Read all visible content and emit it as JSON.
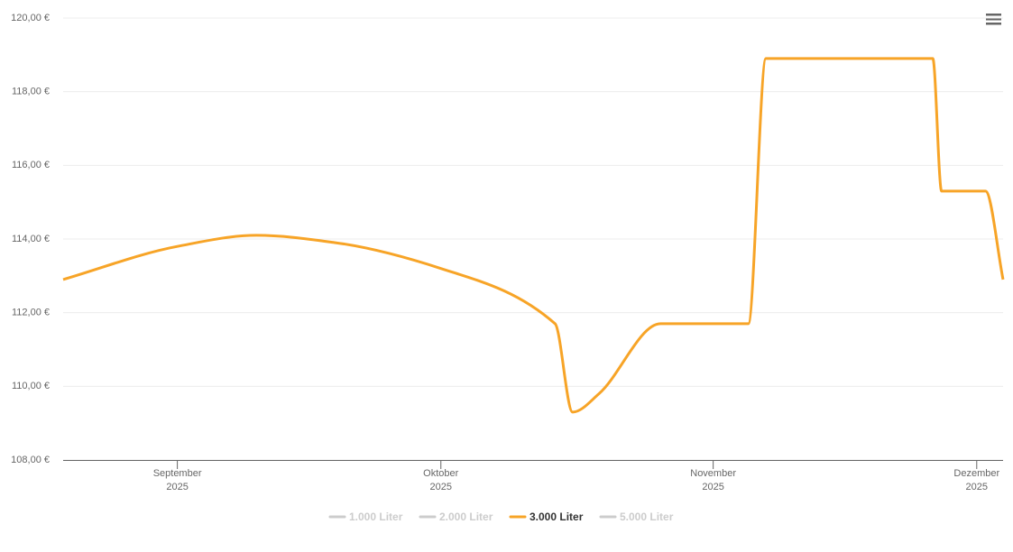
{
  "chart_data": {
    "type": "line",
    "x": [
      231,
      244,
      253,
      262,
      274,
      287,
      289,
      292,
      299,
      309,
      311,
      330,
      331,
      336,
      338
    ],
    "xlim": [
      231,
      338
    ],
    "xticks": [
      {
        "value": 244,
        "label": "September\n2025"
      },
      {
        "value": 274,
        "label": "Oktober\n2025"
      },
      {
        "value": 305,
        "label": "November\n2025"
      },
      {
        "value": 335,
        "label": "Dezember\n2025"
      }
    ],
    "ylim": [
      108,
      120
    ],
    "yticks": [
      {
        "value": 108,
        "label": "108,00 €"
      },
      {
        "value": 110,
        "label": "110,00 €"
      },
      {
        "value": 112,
        "label": "112,00 €"
      },
      {
        "value": 114,
        "label": "114,00 €"
      },
      {
        "value": 116,
        "label": "116,00 €"
      },
      {
        "value": 118,
        "label": "118,00 €"
      },
      {
        "value": 120,
        "label": "120,00 €"
      }
    ],
    "grid": true,
    "series": [
      {
        "name": "1.000 Liter",
        "color": "#cccccc",
        "visible": false
      },
      {
        "name": "2.000 Liter",
        "color": "#cccccc",
        "visible": false
      },
      {
        "name": "3.000 Liter",
        "color": "#f7a427",
        "visible": true,
        "values": [
          112.9,
          113.8,
          114.1,
          113.9,
          113.2,
          111.7,
          109.3,
          109.8,
          111.7,
          111.7,
          118.9,
          118.9,
          115.3,
          115.3,
          112.9
        ]
      },
      {
        "name": "5.000 Liter",
        "color": "#cccccc",
        "visible": false
      }
    ]
  }
}
